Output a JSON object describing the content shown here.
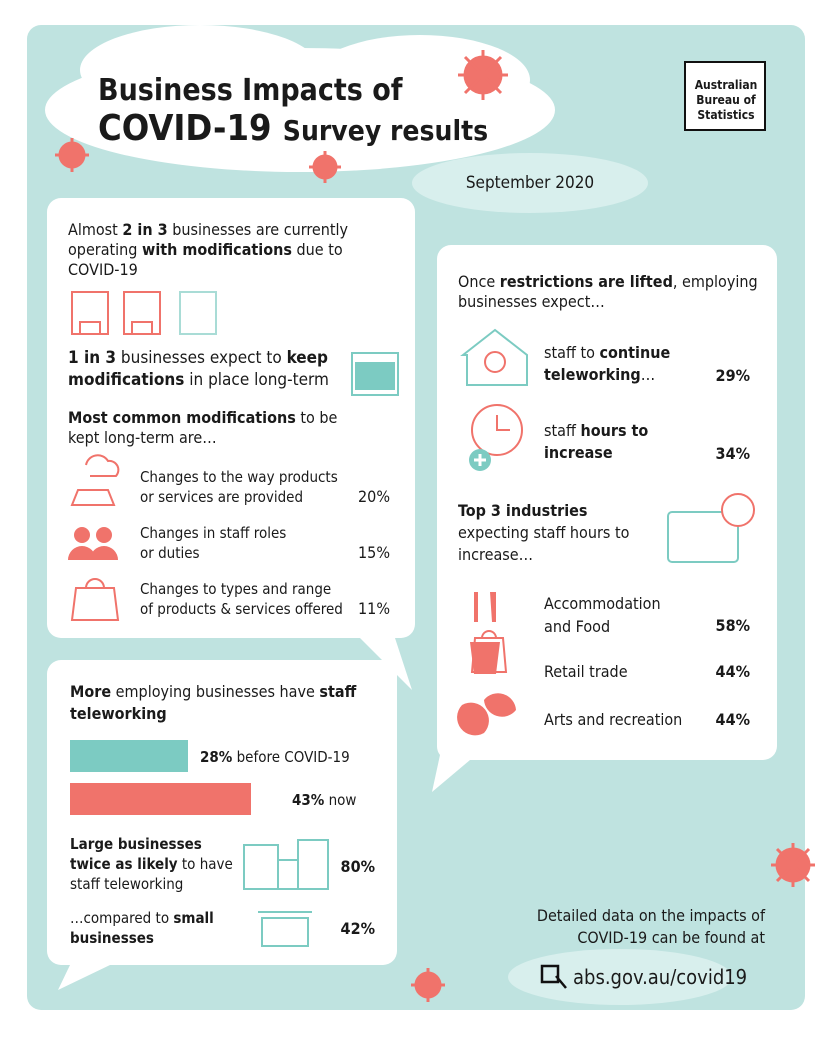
{
  "header": {
    "title": "Business Impacts of",
    "covid": "COVID-19",
    "subtitle": "Survey results",
    "logo": [
      "Australian",
      "Bureau of",
      "Statistics"
    ],
    "date": "September 2020"
  },
  "modifications": {
    "intro": [
      "Almost ",
      "2 in 3",
      " businesses are currently operating ",
      "with modifications",
      " due to COVID-19"
    ],
    "keep": [
      "1 in 3",
      " businesses expect to ",
      "keep modifications",
      " in place long-term"
    ],
    "common": [
      "Most common modifications",
      " to be kept long-term are…"
    ],
    "items": [
      {
        "lines": [
          "Changes to the way products",
          "or services are provided"
        ],
        "pct": "20%"
      },
      {
        "lines": [
          "Changes in staff roles",
          "or duties"
        ],
        "pct": "15%"
      },
      {
        "lines": [
          "Changes to types and range",
          "of products & services offered"
        ],
        "pct": "11%"
      }
    ]
  },
  "teleworking": {
    "title": [
      "More",
      " employing businesses have ",
      "staff teleworking"
    ],
    "bars": [
      {
        "value": 28,
        "label": "28%",
        "text": "before COVID-19"
      },
      {
        "value": 43,
        "label": "43%",
        "text": "now"
      }
    ],
    "large": [
      "Large businesses twice as likely",
      " to have staff teleworking"
    ],
    "large_pct": "80%",
    "small": [
      "…compared to ",
      "small businesses"
    ],
    "small_pct": "42%"
  },
  "after_restrictions": {
    "intro": [
      "Once ",
      "restrictions are lifted",
      ", employing businesses expect…"
    ],
    "items": [
      {
        "parts": [
          "staff to ",
          "continue teleworking",
          "…"
        ],
        "pct": "29%"
      },
      {
        "parts": [
          "staff ",
          "hours to increase"
        ],
        "pct": "34%"
      }
    ],
    "top3": [
      "Top 3 industries",
      " expecting staff hours to increase…"
    ],
    "industries": [
      {
        "name": "Accommodation and Food",
        "pct": "58%"
      },
      {
        "name": "Retail trade",
        "pct": "44%"
      },
      {
        "name": "Arts and recreation",
        "pct": "44%"
      }
    ]
  },
  "footer": {
    "text": "Detailed data on the impacts of COVID-19 can be found at",
    "link": "abs.gov.au/covid19"
  }
}
